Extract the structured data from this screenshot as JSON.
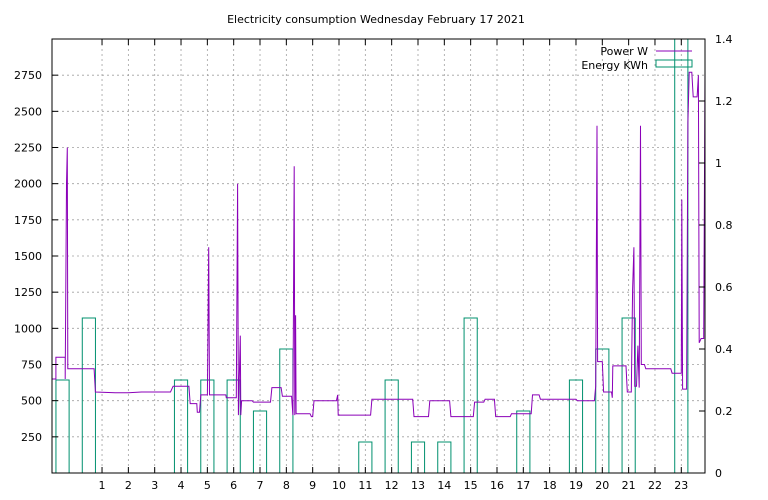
{
  "chart_data": {
    "type": "line",
    "title": "Electricity consumption Wednesday February 17 2021",
    "grid": true,
    "legend_position": "top-right",
    "x_axis": {
      "range": [
        -0.9,
        23.9
      ],
      "ticks": [
        1,
        2,
        3,
        4,
        5,
        6,
        7,
        8,
        9,
        10,
        11,
        12,
        13,
        14,
        15,
        16,
        17,
        18,
        19,
        20,
        21,
        22,
        23
      ]
    },
    "y_axis_left": {
      "range": [
        0,
        3000
      ],
      "ticks": [
        250,
        500,
        750,
        1000,
        1250,
        1500,
        1750,
        2000,
        2250,
        2500,
        2750
      ]
    },
    "y_axis_right": {
      "range": [
        0,
        1.4
      ],
      "ticks": [
        "0",
        "0.2",
        "0.4",
        "0.6",
        "0.8",
        "1",
        "1.2",
        "1.4"
      ]
    },
    "series": [
      {
        "name": "Power W",
        "color": "#8b00b8",
        "style": "line",
        "axis": "left",
        "points": [
          [
            -0.9,
            650
          ],
          [
            -0.75,
            650
          ],
          [
            -0.75,
            800
          ],
          [
            -0.4,
            800
          ],
          [
            -0.4,
            650
          ],
          [
            -0.35,
            2000
          ],
          [
            -0.32,
            2250
          ],
          [
            -0.3,
            720
          ],
          [
            0.7,
            720
          ],
          [
            0.75,
            560
          ],
          [
            1.5,
            555
          ],
          [
            2.0,
            555
          ],
          [
            2.5,
            560
          ],
          [
            3.6,
            560
          ],
          [
            3.7,
            600
          ],
          [
            4.3,
            600
          ],
          [
            4.35,
            480
          ],
          [
            4.6,
            480
          ],
          [
            4.62,
            420
          ],
          [
            4.7,
            420
          ],
          [
            4.75,
            540
          ],
          [
            5.0,
            540
          ],
          [
            5.05,
            1560
          ],
          [
            5.08,
            540
          ],
          [
            5.7,
            540
          ],
          [
            5.72,
            520
          ],
          [
            6.1,
            520
          ],
          [
            6.15,
            2000
          ],
          [
            6.18,
            400
          ],
          [
            6.25,
            950
          ],
          [
            6.27,
            400
          ],
          [
            6.3,
            500
          ],
          [
            6.7,
            500
          ],
          [
            6.75,
            490
          ],
          [
            7.4,
            490
          ],
          [
            7.45,
            590
          ],
          [
            7.8,
            590
          ],
          [
            7.85,
            530
          ],
          [
            8.2,
            530
          ],
          [
            8.25,
            400
          ],
          [
            8.3,
            2120
          ],
          [
            8.32,
            400
          ],
          [
            8.35,
            1090
          ],
          [
            8.37,
            410
          ],
          [
            8.9,
            410
          ],
          [
            8.95,
            390
          ],
          [
            9.0,
            390
          ],
          [
            9.05,
            500
          ],
          [
            9.9,
            500
          ],
          [
            9.95,
            540
          ],
          [
            9.97,
            400
          ],
          [
            11.2,
            400
          ],
          [
            11.25,
            510
          ],
          [
            12.8,
            510
          ],
          [
            12.85,
            390
          ],
          [
            13.4,
            390
          ],
          [
            13.45,
            500
          ],
          [
            14.2,
            500
          ],
          [
            14.25,
            390
          ],
          [
            15.1,
            390
          ],
          [
            15.15,
            490
          ],
          [
            15.5,
            490
          ],
          [
            15.55,
            510
          ],
          [
            15.9,
            510
          ],
          [
            15.95,
            390
          ],
          [
            16.5,
            390
          ],
          [
            16.55,
            410
          ],
          [
            17.3,
            410
          ],
          [
            17.35,
            540
          ],
          [
            17.6,
            540
          ],
          [
            17.65,
            510
          ],
          [
            19.0,
            510
          ],
          [
            19.05,
            500
          ],
          [
            19.7,
            500
          ],
          [
            19.75,
            600
          ],
          [
            19.8,
            2400
          ],
          [
            19.82,
            770
          ],
          [
            20.0,
            770
          ],
          [
            20.05,
            560
          ],
          [
            20.35,
            560
          ],
          [
            20.38,
            520
          ],
          [
            20.4,
            740
          ],
          [
            20.9,
            740
          ],
          [
            20.95,
            560
          ],
          [
            21.1,
            560
          ],
          [
            21.15,
            1270
          ],
          [
            21.2,
            1560
          ],
          [
            21.23,
            600
          ],
          [
            21.3,
            600
          ],
          [
            21.35,
            880
          ],
          [
            21.4,
            590
          ],
          [
            21.45,
            2400
          ],
          [
            21.48,
            750
          ],
          [
            21.6,
            750
          ],
          [
            21.65,
            720
          ],
          [
            22.6,
            720
          ],
          [
            22.65,
            690
          ],
          [
            23.0,
            690
          ],
          [
            23.02,
            1890
          ],
          [
            23.05,
            580
          ],
          [
            23.2,
            580
          ],
          [
            23.25,
            2420
          ],
          [
            23.3,
            2770
          ],
          [
            23.4,
            2770
          ],
          [
            23.45,
            2600
          ],
          [
            23.6,
            2600
          ],
          [
            23.65,
            2750
          ],
          [
            23.68,
            900
          ],
          [
            23.75,
            930
          ],
          [
            23.85,
            930
          ],
          [
            23.9,
            2780
          ]
        ]
      },
      {
        "name": "Energy KWh",
        "color": "#00906e",
        "style": "bars",
        "axis": "right",
        "bars": [
          {
            "x": -0.5,
            "value": 0.3
          },
          {
            "x": 0.5,
            "value": 0.5
          },
          {
            "x": 4.0,
            "value": 0.3
          },
          {
            "x": 5.0,
            "value": 0.3
          },
          {
            "x": 6.0,
            "value": 0.3
          },
          {
            "x": 7.0,
            "value": 0.2
          },
          {
            "x": 8.0,
            "value": 0.4
          },
          {
            "x": 11.0,
            "value": 0.1
          },
          {
            "x": 12.0,
            "value": 0.3
          },
          {
            "x": 13.0,
            "value": 0.1
          },
          {
            "x": 14.0,
            "value": 0.1
          },
          {
            "x": 15.0,
            "value": 0.5
          },
          {
            "x": 17.0,
            "value": 0.2
          },
          {
            "x": 19.0,
            "value": 0.3
          },
          {
            "x": 20.0,
            "value": 0.4
          },
          {
            "x": 21.0,
            "value": 0.5
          },
          {
            "x": 23.0,
            "value": 1.4
          }
        ]
      }
    ]
  }
}
